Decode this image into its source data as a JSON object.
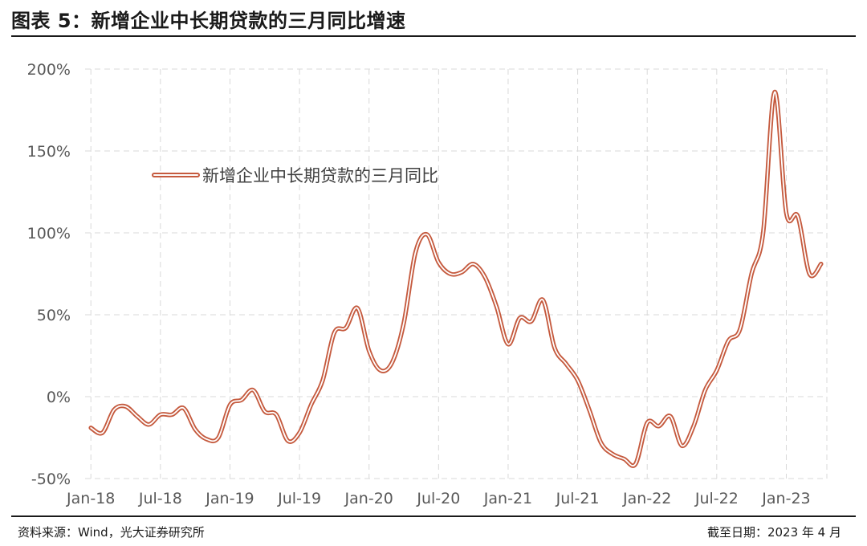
{
  "header": {
    "title": "图表 5：新增企业中长期贷款的三月同比增速"
  },
  "footer": {
    "source": "资料来源：Wind，光大证券研究所",
    "date": "截至日期：2023 年 4 月"
  },
  "colors": {
    "line_outer": "#c55a3e",
    "line_inner": "#ffffff",
    "grid": "#d9d9d9"
  },
  "chart_data": {
    "type": "line",
    "title": "",
    "xlabel": "",
    "ylabel": "",
    "ylim": [
      -50,
      200
    ],
    "yticks": [
      -50,
      0,
      50,
      100,
      150,
      200
    ],
    "ytick_labels": [
      "-50%",
      "0%",
      "50%",
      "100%",
      "150%",
      "200%"
    ],
    "x_start": "2018-01",
    "x_end": "2023-04",
    "xtick_labels": [
      "Jan-18",
      "Jul-18",
      "Jan-19",
      "Jul-19",
      "Jan-20",
      "Jul-20",
      "Jan-21",
      "Jul-21",
      "Jan-22",
      "Jul-22",
      "Jan-23"
    ],
    "grid": true,
    "legend_position": "upper-left",
    "series": [
      {
        "name": "新增企业中长期贷款的三月同比",
        "x": [
          "2018-01",
          "2018-02",
          "2018-03",
          "2018-04",
          "2018-05",
          "2018-06",
          "2018-07",
          "2018-08",
          "2018-09",
          "2018-10",
          "2018-11",
          "2018-12",
          "2019-01",
          "2019-02",
          "2019-03",
          "2019-04",
          "2019-05",
          "2019-06",
          "2019-07",
          "2019-08",
          "2019-09",
          "2019-10",
          "2019-11",
          "2019-12",
          "2020-01",
          "2020-02",
          "2020-03",
          "2020-04",
          "2020-05",
          "2020-06",
          "2020-07",
          "2020-08",
          "2020-09",
          "2020-10",
          "2020-11",
          "2020-12",
          "2021-01",
          "2021-02",
          "2021-03",
          "2021-04",
          "2021-05",
          "2021-06",
          "2021-07",
          "2021-08",
          "2021-09",
          "2021-10",
          "2021-11",
          "2021-12",
          "2022-01",
          "2022-02",
          "2022-03",
          "2022-04",
          "2022-05",
          "2022-06",
          "2022-07",
          "2022-08",
          "2022-09",
          "2022-10",
          "2022-11",
          "2022-12",
          "2023-01",
          "2023-02",
          "2023-03",
          "2023-04"
        ],
        "values": [
          -19,
          -22,
          -8,
          -6,
          -12,
          -17,
          -11,
          -11,
          -7,
          -20,
          -26,
          -25,
          -5,
          -2,
          4,
          -9,
          -11,
          -27,
          -22,
          -5,
          10,
          39,
          42,
          54,
          28,
          16,
          21,
          45,
          88,
          99,
          82,
          75,
          76,
          81,
          73,
          55,
          32,
          48,
          46,
          59,
          30,
          20,
          10,
          -8,
          -28,
          -35,
          -38,
          -41,
          -16,
          -18,
          -12,
          -30,
          -18,
          4,
          16,
          34,
          41,
          75,
          100,
          186,
          112,
          110,
          75,
          81
        ]
      }
    ]
  }
}
